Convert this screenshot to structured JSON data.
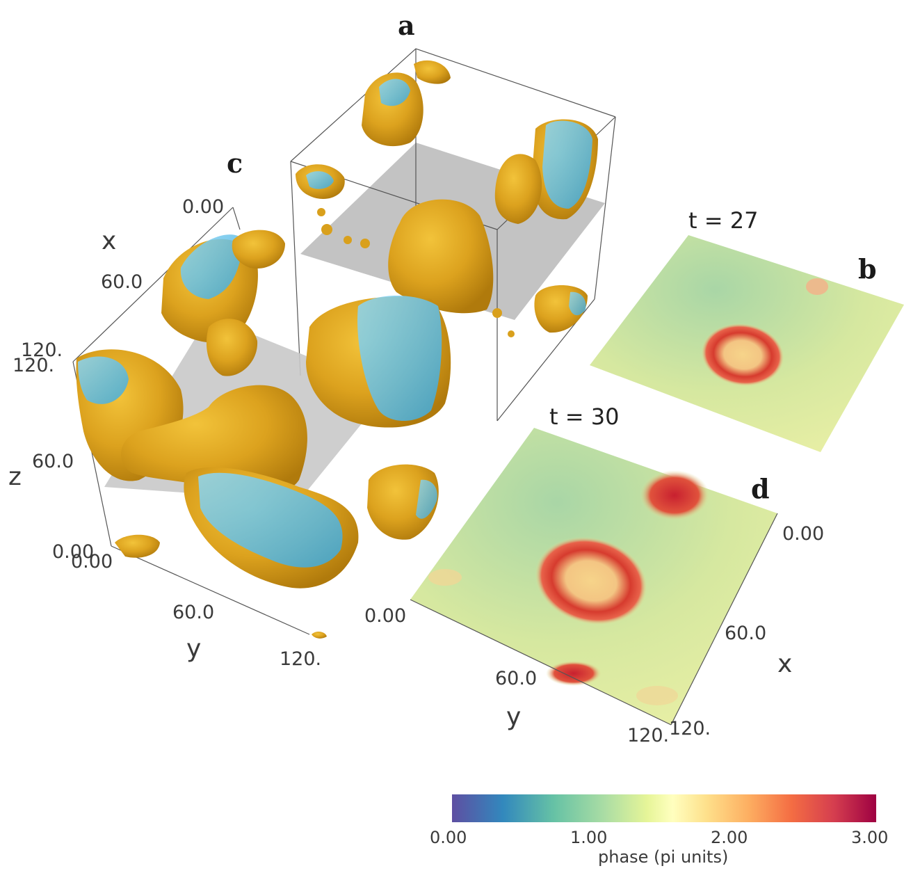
{
  "panels": {
    "a": "a",
    "b": "b",
    "c": "c",
    "d": "d"
  },
  "time_labels": {
    "b": "t = 27",
    "d": "t = 30"
  },
  "axes_3d": {
    "x_name": "x",
    "y_name": "y",
    "z_name": "z",
    "x_ticks": [
      "0.00",
      "60.0",
      "120."
    ],
    "y_ticks": [
      "0.00",
      "60.0",
      "120."
    ],
    "z_ticks": [
      "0.00",
      "60.0",
      "120."
    ]
  },
  "axes_slice": {
    "x_name": "x",
    "y_name": "y",
    "x_ticks": [
      "0.00",
      "60.0",
      "120."
    ],
    "y_ticks": [
      "0.00",
      "60.0",
      "120."
    ]
  },
  "colorbar": {
    "title": "phase (pi units)",
    "ticks": [
      "0.00",
      "1.00",
      "2.00",
      "3.00"
    ],
    "colormap": [
      "#5e4fa2",
      "#3288bd",
      "#66c2a5",
      "#abdda4",
      "#e6f598",
      "#ffffbf",
      "#fee08b",
      "#fdae61",
      "#f46d43",
      "#d53e4f",
      "#9e0142"
    ]
  },
  "colors": {
    "isosurface_outer": "#e0a61c",
    "isosurface_inner": "#5bc3ec",
    "slice_plane": "#bdbdbd",
    "box_edge": "#555555"
  }
}
